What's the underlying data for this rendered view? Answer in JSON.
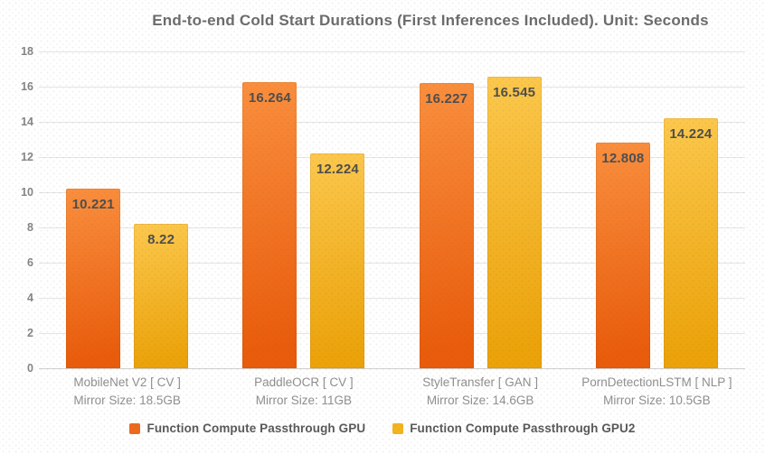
{
  "chart_data": {
    "type": "bar",
    "title": "End-to-end Cold Start Durations (First Inferences Included). Unit: Seconds",
    "xlabel": "",
    "ylabel": "",
    "ylim": [
      0,
      18
    ],
    "ytick_step": 2,
    "grid": true,
    "legend_position": "bottom",
    "categories": [
      {
        "label": "MobileNet V2 [ CV ]",
        "mirror": "Mirror Size: 18.5GB"
      },
      {
        "label": "PaddleOCR [ CV ]",
        "mirror": "Mirror Size: 11GB"
      },
      {
        "label": "StyleTransfer [ GAN ]",
        "mirror": "Mirror Size: 14.6GB"
      },
      {
        "label": "PornDetectionLSTM [ NLP ]",
        "mirror": "Mirror Size: 10.5GB"
      }
    ],
    "series": [
      {
        "name": "Function Compute Passthrough GPU",
        "values": [
          10.221,
          16.264,
          16.227,
          12.808
        ],
        "value_labels": [
          "10.221",
          "16.264",
          "16.227",
          "12.808"
        ],
        "legend_color": "#ed6a1c",
        "gradient_top": "#fa8f3e",
        "gradient_bottom": "#e95c0b"
      },
      {
        "name": "Function Compute Passthrough GPU2",
        "values": [
          8.22,
          12.224,
          16.545,
          14.224
        ],
        "value_labels": [
          "8.22",
          "12.224",
          "16.545",
          "14.224"
        ],
        "legend_color": "#f4b41d",
        "gradient_top": "#fcc84d",
        "gradient_bottom": "#eca30a"
      }
    ]
  }
}
